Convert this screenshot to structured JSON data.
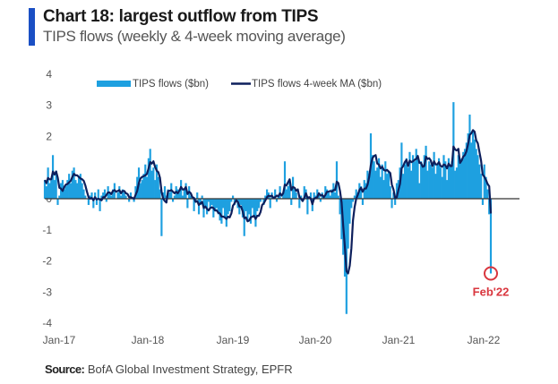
{
  "header": {
    "title": "Chart 18: largest outflow from TIPS",
    "subtitle": "TIPS flows (weekly & 4-week moving average)"
  },
  "footer": {
    "source_label": "Source:",
    "source_text": "BofA Global Investment Strategy, EPFR"
  },
  "colors": {
    "accent_bar": "#1a4fc4",
    "bars": "#1ea0e0",
    "ma_line": "#0d1f5c",
    "zero_line": "#333333",
    "annotation": "#d9363e"
  },
  "chart_data": {
    "type": "bar",
    "title": "Chart 18: largest outflow from TIPS",
    "subtitle": "TIPS flows (weekly & 4-week moving average)",
    "xlabel": "",
    "ylabel": "",
    "ylim": [
      -4,
      4
    ],
    "yticks": [
      4,
      3,
      2,
      1,
      0,
      -1,
      -2,
      -3,
      -4
    ],
    "ytick_labels": [
      "4",
      "3",
      "2",
      "",
      "0",
      "-1",
      "-2",
      "-3",
      "-4"
    ],
    "xticks": [
      "Jan-17",
      "Jan-18",
      "Jan-19",
      "Jan-20",
      "Jan-21",
      "Jan-22"
    ],
    "x_start": "Jan-17",
    "x_end": "Feb-22",
    "frequency": "weekly",
    "grid": false,
    "legend": {
      "placement": "top",
      "entries": [
        {
          "name": "TIPS flows ($bn)",
          "type": "bar"
        },
        {
          "name": "TIPS flows 4-week MA ($bn)",
          "type": "line"
        }
      ]
    },
    "annotations": [
      {
        "text": "Feb'22",
        "target": "last-point",
        "value": -2.4,
        "style": "circle"
      }
    ],
    "series": [
      {
        "name": "TIPS flows ($bn)",
        "type": "bar",
        "values": [
          0.6,
          0.4,
          1.0,
          0.5,
          0.6,
          1.4,
          0.6,
          0.9,
          -0.2,
          0.1,
          0.5,
          0.6,
          0.3,
          0.4,
          0.6,
          0.8,
          0.5,
          0.9,
          1.0,
          0.6,
          0.5,
          0.7,
          0.8,
          0.5,
          0.3,
          0.1,
          0.0,
          -0.2,
          0.1,
          0.2,
          -0.3,
          0.2,
          -0.2,
          0.3,
          -0.4,
          0.1,
          0.2,
          0.3,
          -0.1,
          0.4,
          0.2,
          0.1,
          0.3,
          0.5,
          0.0,
          0.2,
          0.4,
          0.1,
          0.3,
          0.2,
          0.1,
          0.0,
          -0.1,
          0.2,
          0.0,
          -0.1,
          0.4,
          0.7,
          1.0,
          0.5,
          0.6,
          0.8,
          1.1,
          0.7,
          1.3,
          1.6,
          0.9,
          1.0,
          0.6,
          1.1,
          0.7,
          0.3,
          -1.2,
          0.2,
          0.4,
          0.1,
          0.3,
          0.2,
          0.5,
          -0.1,
          0.1,
          0.4,
          0.3,
          0.2,
          0.6,
          0.1,
          0.3,
          0.5,
          -0.3,
          0.4,
          0.1,
          0.0,
          -0.4,
          -0.1,
          0.2,
          -0.5,
          -0.2,
          0.1,
          -0.6,
          -0.3,
          -0.5,
          -0.1,
          -0.3,
          -0.2,
          -0.6,
          -0.4,
          -0.3,
          -0.5,
          -0.7,
          -0.8,
          -0.3,
          -0.6,
          -0.9,
          -0.5,
          -0.4,
          -0.1,
          0.1,
          -0.2,
          0.0,
          -0.3,
          -0.5,
          -0.2,
          -0.6,
          -1.2,
          -0.4,
          -0.7,
          -0.5,
          -0.8,
          -0.3,
          -0.6,
          -0.9,
          -0.4,
          -0.3,
          -0.1,
          0.0,
          -0.2,
          0.1,
          0.3,
          0.2,
          -0.3,
          0.2,
          0.0,
          0.3,
          -0.1,
          0.1,
          0.4,
          0.0,
          0.2,
          1.2,
          0.3,
          0.4,
          0.6,
          -0.2,
          0.7,
          0.3,
          0.2,
          0.0,
          -0.3,
          0.1,
          -0.1,
          0.4,
          0.3,
          -0.5,
          0.0,
          0.2,
          -0.4,
          0.2,
          0.1,
          0.3,
          0.1,
          -0.1,
          0.2,
          0.0,
          0.4,
          0.3,
          0.2,
          0.1,
          0.3,
          0.5,
          0.2,
          1.2,
          0.1,
          -0.5,
          -1.3,
          -1.8,
          -2.5,
          -3.7,
          -1.6,
          -0.8,
          -0.3,
          -0.1,
          0.1,
          0.3,
          0.2,
          0.5,
          0.4,
          -0.2,
          0.6,
          0.5,
          0.9,
          0.8,
          2.1,
          1.4,
          1.2,
          0.9,
          1.0,
          1.3,
          0.7,
          1.1,
          0.6,
          1.2,
          0.8,
          0.9,
          0.4,
          -0.3,
          0.2,
          -0.2,
          0.5,
          0.6,
          1.0,
          1.8,
          0.8,
          1.1,
          1.3,
          1.0,
          1.5,
          0.9,
          1.4,
          1.2,
          1.6,
          1.3,
          0.5,
          1.2,
          1.1,
          1.4,
          1.7,
          0.9,
          1.2,
          1.1,
          1.0,
          1.5,
          0.8,
          1.1,
          1.3,
          1.0,
          0.7,
          1.4,
          1.2,
          0.6,
          1.3,
          1.1,
          1.2,
          3.1,
          0.9,
          1.0,
          1.4,
          1.3,
          1.2,
          1.5,
          1.6,
          1.8,
          2.1,
          2.7,
          1.8,
          2.2,
          1.9,
          1.6,
          1.4,
          1.1,
          0.8,
          -0.2,
          1.1,
          0.7,
          0.3,
          -0.5,
          -2.4
        ]
      },
      {
        "name": "TIPS flows 4-week MA ($bn)",
        "type": "line",
        "values": "4-week trailing average of TIPS flows ($bn), computed from the weekly series"
      }
    ]
  }
}
